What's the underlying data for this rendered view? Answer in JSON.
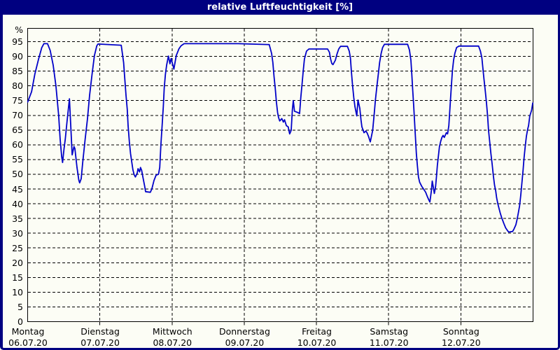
{
  "window": {
    "title": "relative Luftfeuchtigkeit [%]"
  },
  "colors": {
    "titlebar_bg": "#000080",
    "frame": "#000080",
    "title_text": "#ffffff",
    "page_bg": "#fcfdf5",
    "grid": "#000000",
    "axis": "#000000",
    "line": "#0000c8"
  },
  "chart_data": {
    "type": "line",
    "title": "relative Luftfeuchtigkeit [%]",
    "ylabel": "%",
    "ylim": [
      0,
      99.5
    ],
    "xlim_hours": [
      0,
      168
    ],
    "grid": true,
    "yticks": [
      0,
      5,
      10,
      15,
      20,
      25,
      30,
      35,
      40,
      45,
      50,
      55,
      60,
      65,
      70,
      75,
      80,
      85,
      90,
      95
    ],
    "day_gridlines_hours": [
      24,
      48,
      72,
      96,
      120,
      144
    ],
    "days": [
      {
        "hour": 0,
        "name": "Montag",
        "date": "06.07.20"
      },
      {
        "hour": 24,
        "name": "Dienstag",
        "date": "07.07.20"
      },
      {
        "hour": 48,
        "name": "Mittwoch",
        "date": "08.07.20"
      },
      {
        "hour": 72,
        "name": "Donnerstag",
        "date": "09.07.20"
      },
      {
        "hour": 96,
        "name": "Freitag",
        "date": "10.07.20"
      },
      {
        "hour": 120,
        "name": "Samstag",
        "date": "11.07.20"
      },
      {
        "hour": 144,
        "name": "Sonntag",
        "date": "12.07.20"
      }
    ],
    "series": [
      {
        "name": "relative Luftfeuchtigkeit",
        "color": "#0000c8",
        "points": [
          [
            0,
            74.5
          ],
          [
            1.3,
            78
          ],
          [
            2.4,
            84
          ],
          [
            3.6,
            89
          ],
          [
            4.7,
            93
          ],
          [
            5.4,
            94.3
          ],
          [
            6.6,
            94.3
          ],
          [
            7.5,
            92
          ],
          [
            8.5,
            87
          ],
          [
            9.4,
            80
          ],
          [
            10.3,
            70
          ],
          [
            10.8,
            62
          ],
          [
            11.3,
            56
          ],
          [
            11.6,
            54
          ],
          [
            12.1,
            58.7
          ],
          [
            12.5,
            61.8
          ],
          [
            13.1,
            68
          ],
          [
            13.9,
            75.6
          ],
          [
            14.4,
            64.9
          ],
          [
            14.8,
            56.6
          ],
          [
            15.4,
            59.4
          ],
          [
            15.7,
            58.7
          ],
          [
            16.4,
            52.3
          ],
          [
            17,
            48
          ],
          [
            17.3,
            47.1
          ],
          [
            17.8,
            48.5
          ],
          [
            18.3,
            53.9
          ],
          [
            19.1,
            61.8
          ],
          [
            19.9,
            68.9
          ],
          [
            20.6,
            76.8
          ],
          [
            21.4,
            83.9
          ],
          [
            22.2,
            90.3
          ],
          [
            23,
            93.6
          ],
          [
            23.4,
            94.2
          ],
          [
            31.1,
            93.8
          ],
          [
            31.9,
            87.9
          ],
          [
            32.3,
            82.3
          ],
          [
            32.7,
            76.8
          ],
          [
            33.1,
            72
          ],
          [
            33.4,
            66.5
          ],
          [
            33.8,
            61
          ],
          [
            34.2,
            57
          ],
          [
            34.6,
            54.2
          ],
          [
            35,
            51.5
          ],
          [
            35.4,
            49.9
          ],
          [
            35.8,
            49.1
          ],
          [
            36.4,
            50.3
          ],
          [
            36.7,
            51.9
          ],
          [
            37.2,
            50.8
          ],
          [
            37.5,
            52.3
          ],
          [
            37.9,
            51.3
          ],
          [
            38.3,
            49.1
          ],
          [
            38.9,
            45.9
          ],
          [
            39.2,
            44.1
          ],
          [
            40.8,
            43.9
          ],
          [
            41.3,
            45.1
          ],
          [
            42,
            47.9
          ],
          [
            42.7,
            49.7
          ],
          [
            43.5,
            50
          ],
          [
            43.9,
            52.3
          ],
          [
            44.3,
            60.2
          ],
          [
            44.7,
            66.5
          ],
          [
            45.1,
            72.9
          ],
          [
            45.4,
            79.2
          ],
          [
            45.8,
            83.9
          ],
          [
            46.2,
            87.1
          ],
          [
            46.8,
            90.1
          ],
          [
            47.3,
            87.5
          ],
          [
            47.7,
            89.3
          ],
          [
            48.6,
            85.7
          ],
          [
            49.4,
            90.3
          ],
          [
            50.3,
            92.6
          ],
          [
            51,
            93.6
          ],
          [
            52,
            94.3
          ],
          [
            60,
            94.3
          ],
          [
            70,
            94.3
          ],
          [
            80.3,
            94
          ],
          [
            81.1,
            91
          ],
          [
            81.5,
            87.9
          ],
          [
            81.9,
            83.1
          ],
          [
            82.3,
            79.2
          ],
          [
            82.7,
            74.4
          ],
          [
            83.1,
            70.9
          ],
          [
            83.4,
            69.3
          ],
          [
            83.8,
            68.1
          ],
          [
            84.5,
            68.9
          ],
          [
            85,
            67.7
          ],
          [
            85.4,
            68.5
          ],
          [
            86,
            66.5
          ],
          [
            86.6,
            66.1
          ],
          [
            87.1,
            63.7
          ],
          [
            87.6,
            64.9
          ],
          [
            88,
            72
          ],
          [
            88.3,
            75
          ],
          [
            88.7,
            71.4
          ],
          [
            89.7,
            71
          ],
          [
            90.4,
            70.6
          ],
          [
            90.8,
            76
          ],
          [
            91.2,
            80.3
          ],
          [
            91.6,
            85.1
          ],
          [
            92,
            89.1
          ],
          [
            92.7,
            91.8
          ],
          [
            93.5,
            92.5
          ],
          [
            99.7,
            92.5
          ],
          [
            100.3,
            91.4
          ],
          [
            100.7,
            89.1
          ],
          [
            101.1,
            87.6
          ],
          [
            101.5,
            87.2
          ],
          [
            102.3,
            88.7
          ],
          [
            102.8,
            90.7
          ],
          [
            103.4,
            92.5
          ],
          [
            104,
            93.4
          ],
          [
            106.3,
            93.4
          ],
          [
            106.9,
            91.8
          ],
          [
            107.3,
            89.5
          ],
          [
            107.6,
            85.1
          ],
          [
            108,
            80.3
          ],
          [
            108.4,
            76
          ],
          [
            108.8,
            72.9
          ],
          [
            109.4,
            69.8
          ],
          [
            109.8,
            75.2
          ],
          [
            110.4,
            72.4
          ],
          [
            110.8,
            68.5
          ],
          [
            111.1,
            66.1
          ],
          [
            111.8,
            64.1
          ],
          [
            112.4,
            64.7
          ],
          [
            112.8,
            64.1
          ],
          [
            113.3,
            62.9
          ],
          [
            113.9,
            61
          ],
          [
            114.7,
            64.9
          ],
          [
            115.2,
            70.5
          ],
          [
            115.6,
            75.2
          ],
          [
            116.1,
            80
          ],
          [
            116.6,
            84.3
          ],
          [
            117,
            87.9
          ],
          [
            117.5,
            91
          ],
          [
            118,
            93
          ],
          [
            118.6,
            94.1
          ],
          [
            126.3,
            94.1
          ],
          [
            126.9,
            92.2
          ],
          [
            127.4,
            88.7
          ],
          [
            127.7,
            83.9
          ],
          [
            128,
            78.5
          ],
          [
            128.3,
            73.6
          ],
          [
            128.6,
            68.1
          ],
          [
            128.9,
            62.5
          ],
          [
            129.2,
            57
          ],
          [
            129.6,
            52.3
          ],
          [
            129.9,
            49.1
          ],
          [
            130.3,
            47.3
          ],
          [
            131,
            45.9
          ],
          [
            131.6,
            45
          ],
          [
            132.3,
            43.9
          ],
          [
            132.8,
            42.6
          ],
          [
            133.4,
            41.2
          ],
          [
            133.7,
            40.6
          ],
          [
            134.2,
            44.3
          ],
          [
            134.5,
            47.7
          ],
          [
            134.8,
            45.9
          ],
          [
            135.2,
            43.5
          ],
          [
            135.6,
            45.9
          ],
          [
            135.9,
            49.1
          ],
          [
            136.2,
            53
          ],
          [
            136.5,
            55.8
          ],
          [
            136.9,
            59.4
          ],
          [
            137.3,
            61.2
          ],
          [
            137.7,
            62.5
          ],
          [
            138.1,
            63.2
          ],
          [
            138.5,
            62.5
          ],
          [
            139.2,
            64.1
          ],
          [
            139.6,
            63.7
          ],
          [
            140,
            66.5
          ],
          [
            140.4,
            72.9
          ],
          [
            140.8,
            79.2
          ],
          [
            141.2,
            85.1
          ],
          [
            141.6,
            88.7
          ],
          [
            142,
            91
          ],
          [
            142.6,
            93
          ],
          [
            143.4,
            93.5
          ],
          [
            149.9,
            93.5
          ],
          [
            150.5,
            91.8
          ],
          [
            151,
            89.5
          ],
          [
            151.3,
            86.3
          ],
          [
            151.7,
            82.3
          ],
          [
            152.1,
            78.4
          ],
          [
            152.5,
            74.4
          ],
          [
            152.9,
            69.7
          ],
          [
            153.2,
            64.9
          ],
          [
            153.6,
            61
          ],
          [
            154,
            57
          ],
          [
            154.4,
            53.4
          ],
          [
            154.8,
            49.5
          ],
          [
            155.2,
            46.3
          ],
          [
            155.6,
            44.3
          ],
          [
            155.9,
            42
          ],
          [
            156.3,
            40
          ],
          [
            156.7,
            38.4
          ],
          [
            157.1,
            36.8
          ],
          [
            157.6,
            35.2
          ],
          [
            158.3,
            33.3
          ],
          [
            158.9,
            31.8
          ],
          [
            159.5,
            30.9
          ],
          [
            159.9,
            30.4
          ],
          [
            161.2,
            30.6
          ],
          [
            161.7,
            31.5
          ],
          [
            162.3,
            32.9
          ],
          [
            162.7,
            34.7
          ],
          [
            163.1,
            36.8
          ],
          [
            163.5,
            39.2
          ],
          [
            163.9,
            42.8
          ],
          [
            164.3,
            47.1
          ],
          [
            164.7,
            51.5
          ],
          [
            165,
            55.4
          ],
          [
            165.4,
            59.4
          ],
          [
            165.8,
            62.9
          ],
          [
            166.2,
            65.3
          ],
          [
            166.5,
            66.5
          ],
          [
            166.9,
            69.7
          ],
          [
            167.5,
            71.7
          ],
          [
            167.9,
            74.2
          ]
        ]
      }
    ]
  }
}
